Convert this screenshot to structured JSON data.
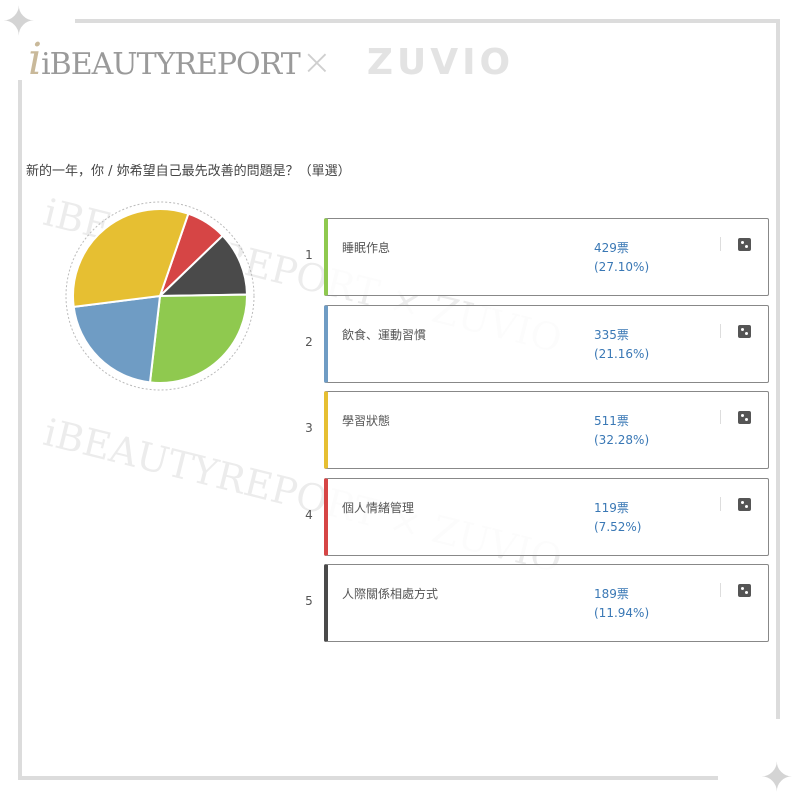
{
  "branding": {
    "logo_left": "iBEAUTYREPORT",
    "logo_separator": "×",
    "logo_right": "ZUVIO"
  },
  "question": "新的一年，你 / 妳希望自己最先改善的問題是？（單選）",
  "options": [
    {
      "index": "1",
      "label": "睡眠作息",
      "votes": "429票",
      "percent": "(27.10%)",
      "color": "#8fc94f"
    },
    {
      "index": "2",
      "label": "飲食、運動習慣",
      "votes": "335票",
      "percent": "(21.16%)",
      "color": "#6f9cc4"
    },
    {
      "index": "3",
      "label": "學習狀態",
      "votes": "511票",
      "percent": "(32.28%)",
      "color": "#e6bf32"
    },
    {
      "index": "4",
      "label": "個人情緒管理",
      "votes": "119票",
      "percent": "(7.52%)",
      "color": "#d64545"
    },
    {
      "index": "5",
      "label": "人際關係相處方式",
      "votes": "189票",
      "percent": "(11.94%)",
      "color": "#4a4a4a"
    }
  ],
  "chart_data": {
    "type": "pie",
    "categories": [
      "睡眠作息",
      "飲食、運動習慣",
      "學習狀態",
      "個人情緒管理",
      "人際關係相處方式"
    ],
    "values": [
      429,
      335,
      511,
      119,
      189
    ],
    "percentages": [
      27.1,
      21.16,
      32.28,
      7.52,
      11.94
    ],
    "colors": [
      "#8fc94f",
      "#6f9cc4",
      "#e6bf32",
      "#d64545",
      "#4a4a4a"
    ],
    "slice_order_clockwise": [
      "個人情緒管理",
      "人際關係相處方式",
      "睡眠作息",
      "飲食、運動習慣",
      "學習狀態"
    ],
    "legend": "none"
  }
}
